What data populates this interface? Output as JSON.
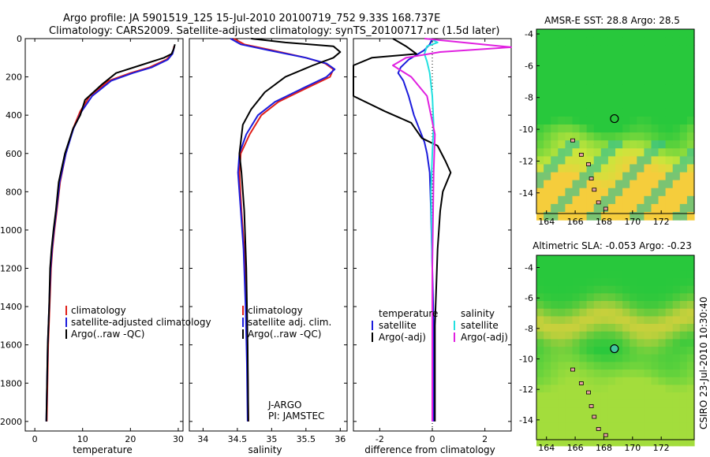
{
  "figure": {
    "title_line1": "Argo profile: JA 5901519_125 15-Jul-2010 20100719_752 9.33S 168.737E",
    "title_line2": "Climatology: CARS2009. Satellite-adjusted climatology: synTS_20100717.nc (1.5d later)",
    "credit": "CSIRO 23-Jul-2010 10:30:40",
    "institution_line1": "J-ARGO",
    "institution_line2": "PI: JAMSTEC"
  },
  "colors": {
    "climatology": "#e0201a",
    "satellite": "#1c1cdc",
    "argo": "#000000",
    "salinity_satellite": "#22e0e0",
    "salinity_argo": "#e020e0"
  },
  "chart_data": [
    {
      "type": "line",
      "xlabel": "temperature",
      "xlim": [
        -2,
        31
      ],
      "ylim": [
        2050,
        0
      ],
      "xticks": [
        0,
        10,
        20,
        30
      ],
      "yticks": [
        0,
        200,
        400,
        600,
        800,
        1000,
        1200,
        1400,
        1600,
        1800,
        2000
      ],
      "legend_position": "lower-right",
      "series": [
        {
          "name": "climatology",
          "x": [
            29.1,
            29.0,
            28.7,
            27.5,
            24.0,
            20.0,
            15.5,
            11.5,
            9.5,
            8.0,
            6.5,
            5.3,
            4.6,
            4.1,
            3.7,
            3.4,
            3.1,
            2.8,
            2.5
          ],
          "y": [
            40,
            60,
            80,
            110,
            150,
            180,
            220,
            300,
            380,
            470,
            600,
            750,
            900,
            1000,
            1100,
            1200,
            1400,
            1600,
            2000
          ]
        },
        {
          "name": "satellite-adjusted climatology",
          "x": [
            29.2,
            29.0,
            28.8,
            27.8,
            24.5,
            20.5,
            16.0,
            12.0,
            9.8,
            8.1,
            6.5,
            5.2,
            4.5,
            4.0,
            3.6,
            3.3,
            3.0,
            2.7,
            2.4
          ],
          "y": [
            40,
            60,
            80,
            110,
            150,
            180,
            220,
            300,
            380,
            470,
            600,
            750,
            900,
            1000,
            1100,
            1200,
            1400,
            1600,
            2000
          ]
        },
        {
          "name": "Argo(..raw -QC)",
          "x": [
            29.3,
            29.1,
            28.6,
            27.0,
            22.0,
            17.0,
            14.0,
            10.5,
            9.5,
            8.0,
            6.3,
            5.0,
            4.4,
            3.9,
            3.5,
            3.2,
            3.0,
            2.7,
            2.4
          ],
          "y": [
            30,
            50,
            80,
            100,
            140,
            180,
            240,
            320,
            400,
            470,
            600,
            750,
            900,
            1000,
            1100,
            1200,
            1400,
            1600,
            2000
          ]
        }
      ]
    },
    {
      "type": "line",
      "xlabel": "salinity",
      "xlim": [
        33.8,
        36.1
      ],
      "ylim": [
        2050,
        0
      ],
      "xticks": [
        34,
        34.5,
        35,
        35.5,
        36
      ],
      "legend_position": "lower-right",
      "series": [
        {
          "name": "climatology",
          "x": [
            34.45,
            34.6,
            35.0,
            35.5,
            35.78,
            35.9,
            35.85,
            35.5,
            35.1,
            34.85,
            34.68,
            34.55,
            34.53,
            34.56,
            34.6,
            34.63,
            34.65,
            34.66
          ],
          "y": [
            0,
            30,
            60,
            100,
            130,
            160,
            200,
            260,
            330,
            400,
            500,
            600,
            700,
            900,
            1100,
            1400,
            1700,
            2000
          ]
        },
        {
          "name": "satellite adj. clim.",
          "x": [
            34.4,
            34.55,
            34.95,
            35.5,
            35.8,
            35.92,
            35.8,
            35.45,
            35.05,
            34.8,
            34.63,
            34.53,
            34.51,
            34.55,
            34.59,
            34.62,
            34.64,
            34.65
          ],
          "y": [
            0,
            30,
            60,
            100,
            130,
            160,
            200,
            260,
            330,
            400,
            500,
            600,
            700,
            900,
            1100,
            1400,
            1700,
            2000
          ]
        },
        {
          "name": "Argo(..raw -QC)",
          "x": [
            34.7,
            35.2,
            35.9,
            36.0,
            35.9,
            35.6,
            35.2,
            34.9,
            34.7,
            34.58,
            34.53,
            34.56,
            34.6,
            34.63,
            34.65,
            34.66
          ],
          "y": [
            0,
            20,
            40,
            70,
            100,
            140,
            200,
            280,
            370,
            450,
            600,
            700,
            900,
            1200,
            1600,
            2000
          ]
        }
      ]
    },
    {
      "type": "line",
      "xlabel": "difference from climatology",
      "xlim": [
        -3,
        3
      ],
      "ylim": [
        2050,
        0
      ],
      "xticks": [
        -2,
        0,
        2
      ],
      "zero_line": "dotted",
      "legend_position": "lower-right",
      "legend_groups": [
        "temperature",
        "salinity"
      ],
      "series": [
        {
          "name": "satellite",
          "group": "temperature",
          "x": [
            0.0,
            -0.1,
            -0.3,
            -0.9,
            -1.2,
            -1.3,
            -1.1,
            -0.9,
            -0.7,
            -0.5,
            -0.3,
            -0.2,
            -0.1,
            -0.05,
            0.0,
            0.05,
            0.05,
            0.05
          ],
          "y": [
            0,
            30,
            60,
            110,
            150,
            180,
            220,
            300,
            400,
            470,
            540,
            600,
            700,
            900,
            1200,
            1500,
            1800,
            2000
          ]
        },
        {
          "name": "Argo(-adj)",
          "group": "temperature",
          "x": [
            -1.5,
            -1.0,
            -0.6,
            -2.3,
            -3.0,
            -3.0,
            -1.8,
            -0.8,
            -0.4,
            0.2,
            0.5,
            0.7,
            0.4,
            0.3,
            0.2,
            0.1,
            0.1
          ],
          "y": [
            0,
            40,
            80,
            100,
            140,
            300,
            380,
            440,
            520,
            560,
            640,
            700,
            800,
            900,
            1100,
            1500,
            2000
          ]
        },
        {
          "name": "satellite",
          "group": "salinity",
          "x": [
            -0.1,
            0.2,
            -0.2,
            -0.3,
            -0.2,
            -0.1,
            0.0,
            0.05,
            0.0,
            -0.05,
            0.0,
            0.0,
            0.0
          ],
          "y": [
            0,
            20,
            40,
            80,
            120,
            180,
            300,
            450,
            600,
            800,
            1200,
            1600,
            2000
          ]
        },
        {
          "name": "Argo(-adj)",
          "group": "salinity",
          "x": [
            -0.3,
            3.0,
            0.3,
            -1.0,
            -1.5,
            -0.8,
            -0.2,
            0.1,
            0.05,
            0.0,
            0.0
          ],
          "y": [
            0,
            45,
            70,
            100,
            140,
            200,
            300,
            500,
            700,
            1200,
            2000
          ]
        }
      ]
    },
    {
      "type": "heatmap",
      "title": "AMSR-E SST: 28.8 Argo: 28.5",
      "xlim": [
        163.3,
        174.3
      ],
      "ylim": [
        -15.3,
        -3.7
      ],
      "xticks": [
        164,
        166,
        168,
        170,
        172
      ],
      "yticks": [
        -4,
        -6,
        -8,
        -10,
        -12,
        -14
      ],
      "marker": {
        "lon": 168.737,
        "lat": -9.33
      }
    },
    {
      "type": "heatmap",
      "title": "Altimetric SLA: -0.053 Argo: -0.23",
      "xlim": [
        163.3,
        174.3
      ],
      "ylim": [
        -15.3,
        -3.2
      ],
      "xticks": [
        164,
        166,
        168,
        170,
        172
      ],
      "yticks": [
        -4,
        -6,
        -8,
        -10,
        -12,
        -14
      ],
      "marker": {
        "lon": 168.737,
        "lat": -9.33
      }
    }
  ]
}
